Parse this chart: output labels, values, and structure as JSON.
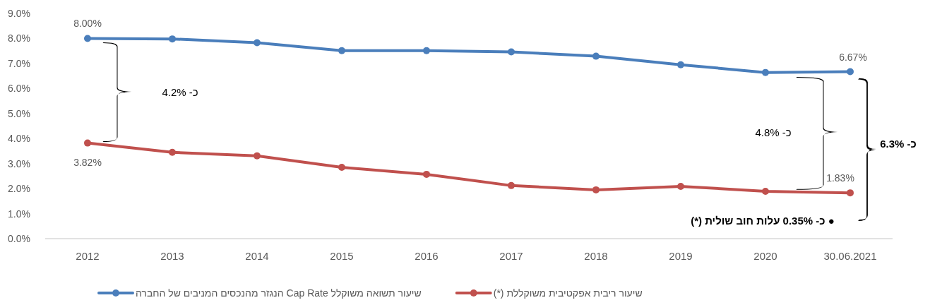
{
  "chart_data": {
    "type": "line",
    "categories": [
      "2012",
      "2013",
      "2014",
      "2015",
      "2016",
      "2017",
      "2018",
      "2019",
      "2020",
      "30.06.2021"
    ],
    "series": [
      {
        "name": "שיעור תשואה משוקלל Cap Rate הנגזר מהנכסים המניבים של החברה",
        "color": "#4a7ebb",
        "values": [
          8.0,
          7.98,
          7.83,
          7.51,
          7.51,
          7.46,
          7.29,
          6.95,
          6.64,
          6.67
        ],
        "value_labels": [
          "8.00%",
          null,
          null,
          null,
          null,
          null,
          null,
          null,
          null,
          "6.67%"
        ]
      },
      {
        "name": "שיעור ריבית אפקטיבית משוקללת (*)",
        "color": "#c0504d",
        "values": [
          3.82,
          3.45,
          3.31,
          2.85,
          2.57,
          2.12,
          1.95,
          2.09,
          1.89,
          1.83
        ],
        "value_labels": [
          "3.82%",
          null,
          null,
          null,
          null,
          null,
          null,
          null,
          null,
          "1.83%"
        ]
      }
    ],
    "ylim": [
      0,
      9
    ],
    "yticks": [
      {
        "value": 0,
        "label": "0.0%"
      },
      {
        "value": 1,
        "label": "1.0%"
      },
      {
        "value": 2,
        "label": "2.0%"
      },
      {
        "value": 3,
        "label": "3.0%"
      },
      {
        "value": 4,
        "label": "4.0%"
      },
      {
        "value": 5,
        "label": "5.0%"
      },
      {
        "value": 6,
        "label": "6.0%"
      },
      {
        "value": 7,
        "label": "7.0%"
      },
      {
        "value": 8,
        "label": "8.0%"
      },
      {
        "value": 9,
        "label": "9.0%"
      }
    ],
    "annotations": [
      "כ- 4.2%",
      "כ- 4.8%",
      "כ- 6.3%",
      "● כ- 0.35% עלות חוב שולית (*)"
    ],
    "marker": "circle",
    "line_style": "solid",
    "legend": "bottom",
    "grid": false
  }
}
